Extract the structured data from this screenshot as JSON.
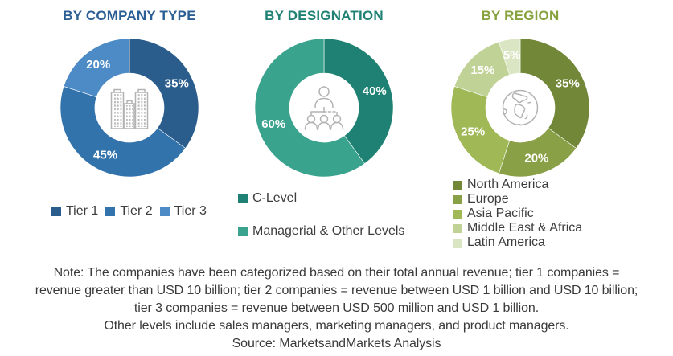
{
  "chart_data": [
    {
      "type": "pie",
      "subtype": "donut",
      "title": "BY COMPANY TYPE",
      "title_color": "#2C5F94",
      "center_icon": "buildings-icon",
      "legend_position": "bottom-horizontal",
      "direction": "clockwise",
      "start_angle_deg": 0,
      "value_suffix": "%",
      "label_color": "#FFFFFF",
      "segments": [
        {
          "label": "Tier 1",
          "value": 35,
          "color": "#2B5D8C"
        },
        {
          "label": "Tier 2",
          "value": 45,
          "color": "#3273AC"
        },
        {
          "label": "Tier 3",
          "value": 20,
          "color": "#4C8BC6"
        }
      ]
    },
    {
      "type": "pie",
      "subtype": "donut",
      "title": "BY DESIGNATION",
      "title_color": "#1F8173",
      "center_icon": "org-hierarchy-icon",
      "legend_position": "bottom-vertical",
      "direction": "clockwise",
      "start_angle_deg": 0,
      "value_suffix": "%",
      "label_color": "#FFFFFF",
      "segments": [
        {
          "label": "C-Level",
          "value": 40,
          "color": "#1F8173"
        },
        {
          "label": "Managerial & Other Levels",
          "value": 60,
          "color": "#3AA38E"
        }
      ]
    },
    {
      "type": "pie",
      "subtype": "donut",
      "title": "BY REGION",
      "title_color": "#87A33F",
      "center_icon": "globe-icon",
      "legend_position": "bottom-vertical",
      "direction": "clockwise",
      "start_angle_deg": 0,
      "value_suffix": "%",
      "label_color": "#FFFFFF",
      "segments": [
        {
          "label": "North America",
          "value": 35,
          "color": "#738739"
        },
        {
          "label": "Europe",
          "value": 20,
          "color": "#8AA047"
        },
        {
          "label": "Asia Pacific",
          "value": 25,
          "color": "#A1B857"
        },
        {
          "label": "Middle East & Africa",
          "value": 15,
          "color": "#C0D295"
        },
        {
          "label": "Latin America",
          "value": 5,
          "color": "#DAE6C3"
        }
      ]
    }
  ],
  "note": {
    "lines": [
      "Note: The companies have been categorized based on their total annual revenue; tier 1 companies =",
      "revenue greater than USD 10 billion; tier 2 companies = revenue between USD 1 billion and USD 10 billion;",
      "tier 3 companies = revenue between USD 500 million and USD 1 billion.",
      "Other levels include sales managers, marketing managers, and product managers.",
      "Source: MarketsandMarkets Analysis"
    ]
  },
  "icon_color": "#B3B3B3"
}
